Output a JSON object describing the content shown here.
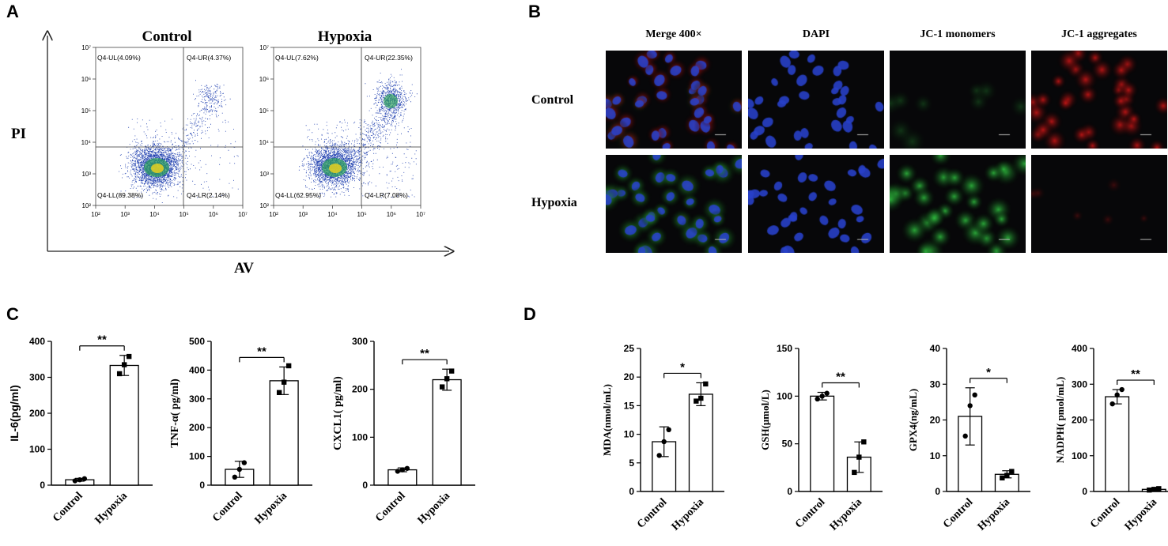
{
  "panels": {
    "a": "A",
    "b": "B",
    "c": "C",
    "d": "D"
  },
  "flow": {
    "x_axis_label": "AV",
    "y_axis_label": "PI",
    "x_tick_labels": [
      "10²",
      "10³",
      "10⁴",
      "10⁵",
      "10⁶",
      "10⁷"
    ],
    "y_tick_labels": [
      "10²",
      "10³",
      "10⁴",
      "10⁵",
      "10⁶",
      "10⁷"
    ],
    "plots": [
      {
        "title": "Control",
        "quadrants": {
          "ul": "Q4-UL(4.09%)",
          "ur": "Q4-UR(4.37%)",
          "ll": "Q4-LL(89.38%)",
          "lr": "Q4-LR(2.14%)"
        }
      },
      {
        "title": "Hypoxia",
        "quadrants": {
          "ul": "Q4-UL(7.62%)",
          "ur": "Q4-UR(22.35%)",
          "ll": "Q4-LL(62.95%)",
          "lr": "Q4-LR(7.08%)"
        }
      }
    ]
  },
  "microscopy": {
    "columns": [
      "Merge 400×",
      "DAPI",
      "JC-1 monomers",
      "JC-1 aggregates"
    ],
    "rows": [
      "Control",
      "Hypoxia"
    ],
    "colors": {
      "dapi": "#2840c8",
      "monomer": "#30c040",
      "aggregate": "#e01818"
    }
  },
  "chart_data": [
    {
      "type": "bar",
      "panel": "C",
      "categories": [
        "Control",
        "Hypoxia"
      ],
      "values": [
        15,
        333
      ],
      "errors": [
        4,
        28
      ],
      "points": [
        [
          12,
          15,
          18
        ],
        [
          310,
          335,
          358
        ]
      ],
      "ylabel": "IL-6(pg/ml)",
      "ylim": [
        0,
        400
      ],
      "yticks": [
        "0",
        "100",
        "200",
        "300",
        "400"
      ],
      "significance": "**"
    },
    {
      "type": "bar",
      "panel": "C",
      "categories": [
        "Control",
        "Hypoxia"
      ],
      "values": [
        55,
        363
      ],
      "errors": [
        28,
        48
      ],
      "points": [
        [
          28,
          55,
          78
        ],
        [
          322,
          358,
          415
        ]
      ],
      "ylabel": "TNF-α( pg/ml)",
      "ylim": [
        0,
        500
      ],
      "yticks": [
        "0",
        "100",
        "200",
        "300",
        "400",
        "500"
      ],
      "significance": "**"
    },
    {
      "type": "bar",
      "panel": "C",
      "categories": [
        "Control",
        "Hypoxia"
      ],
      "values": [
        32,
        220
      ],
      "errors": [
        4,
        22
      ],
      "points": [
        [
          29,
          32,
          35
        ],
        [
          205,
          222,
          238
        ]
      ],
      "ylabel": "CXCL1( pg/ml)",
      "ylim": [
        0,
        300
      ],
      "yticks": [
        "0",
        "100",
        "200",
        "300"
      ],
      "significance": "**"
    },
    {
      "type": "bar",
      "panel": "D",
      "categories": [
        "Control",
        "Hypoxia"
      ],
      "values": [
        8.7,
        17.0
      ],
      "errors": [
        2.6,
        2.0
      ],
      "points": [
        [
          6.3,
          8.7,
          10.8
        ],
        [
          15.8,
          16.3,
          18.8
        ]
      ],
      "ylabel": "MDA(nmol/mL)",
      "ylim": [
        0,
        25
      ],
      "yticks": [
        "0",
        "5",
        "10",
        "15",
        "20",
        "25"
      ],
      "significance": "*"
    },
    {
      "type": "bar",
      "panel": "D",
      "categories": [
        "Control",
        "Hypoxia"
      ],
      "values": [
        100,
        36
      ],
      "errors": [
        4,
        16
      ],
      "points": [
        [
          97,
          100,
          103
        ],
        [
          20,
          36,
          52
        ]
      ],
      "ylabel": "GSH(μmol/L)",
      "ylim": [
        0,
        150
      ],
      "yticks": [
        "0",
        "50",
        "100",
        "150"
      ],
      "significance": "**"
    },
    {
      "type": "bar",
      "panel": "D",
      "categories": [
        "Control",
        "Hypoxia"
      ],
      "values": [
        21,
        4.8
      ],
      "errors": [
        8,
        1.0
      ],
      "points": [
        [
          15.5,
          24,
          27
        ],
        [
          3.8,
          4.5,
          5.6
        ]
      ],
      "ylabel": "GPX4(ng/mL)",
      "ylim": [
        0,
        40
      ],
      "yticks": [
        "0",
        "10",
        "20",
        "30",
        "40"
      ],
      "significance": "*"
    },
    {
      "type": "bar",
      "panel": "D",
      "categories": [
        "Control",
        "Hypoxia"
      ],
      "values": [
        265,
        6
      ],
      "errors": [
        20,
        2
      ],
      "points": [
        [
          245,
          270,
          285
        ],
        [
          4,
          6,
          8
        ]
      ],
      "ylabel": "NADPH( pmol/mL)",
      "ylim": [
        0,
        400
      ],
      "yticks": [
        "0",
        "100",
        "200",
        "300",
        "400"
      ],
      "significance": "**"
    }
  ]
}
